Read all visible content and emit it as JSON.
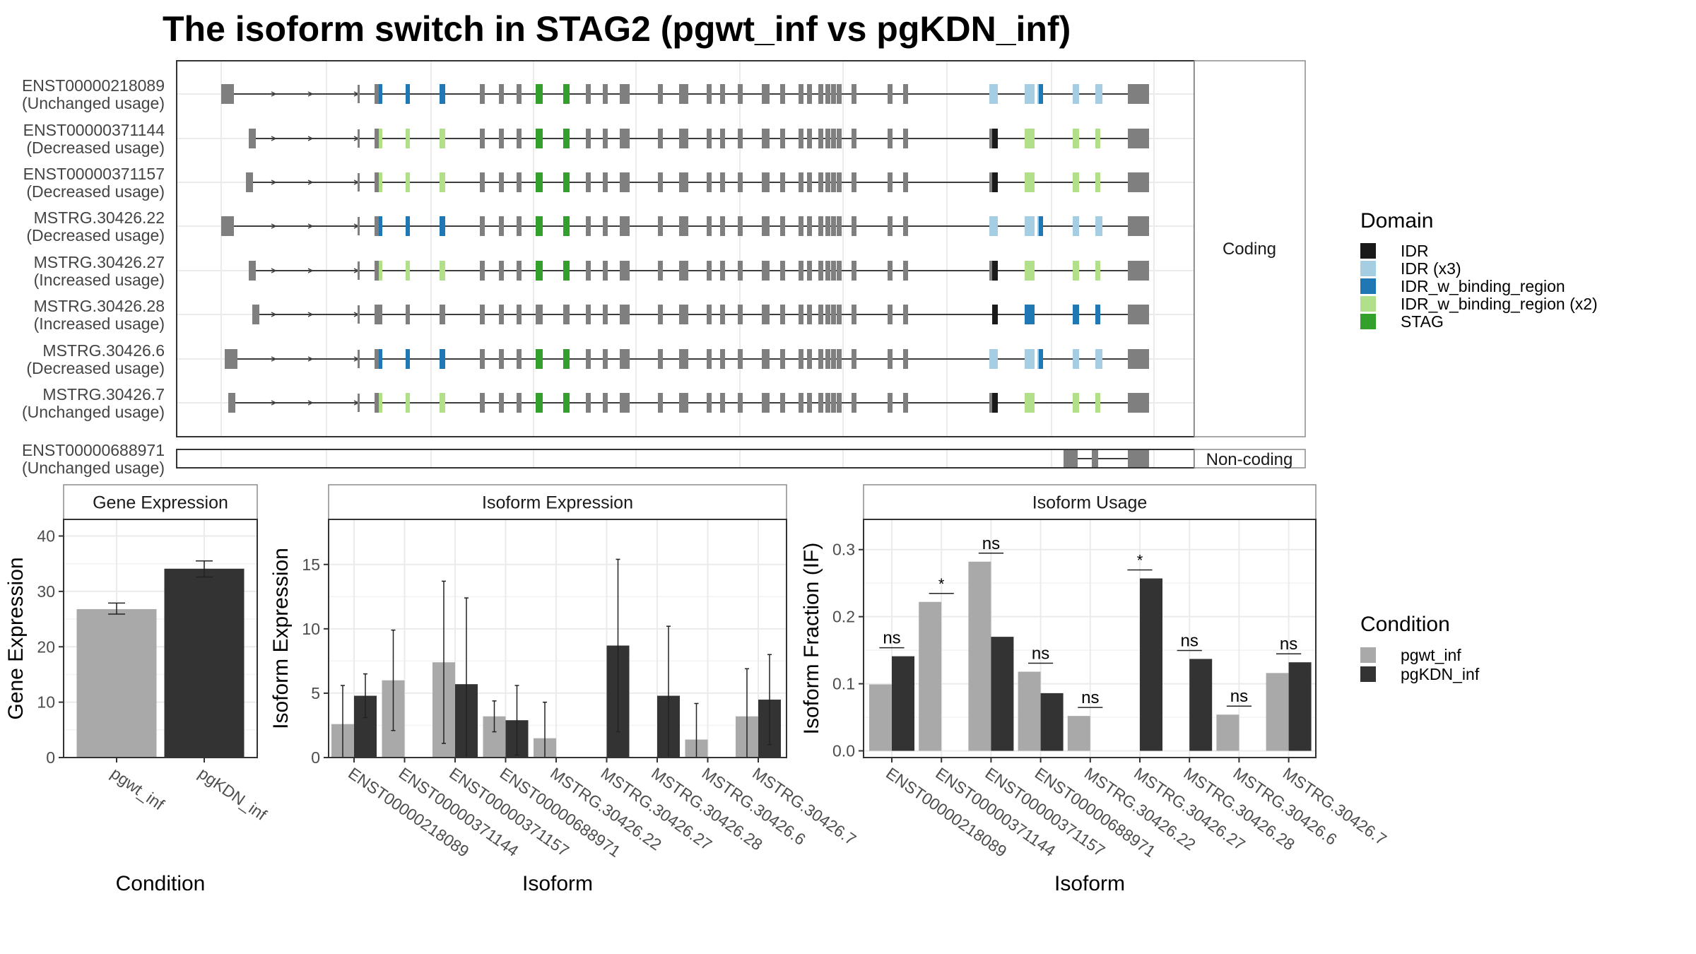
{
  "title": "The isoform switch in STAG2 (pgwt_inf vs pgKDN_inf)",
  "colors": {
    "IDR": "#1a1a1a",
    "IDR_x3": "#a6cee3",
    "IDR_w_binding_region": "#1f78b4",
    "IDR_w_binding_region_x2": "#b2df8a",
    "STAG": "#33a02c",
    "exon_gray": "#7f7f7f",
    "pgwt_inf": "#a9a9a9",
    "pgKDN_inf": "#333333",
    "panel_border": "#333333",
    "grid": "#ebebeb",
    "strip_border": "#8c8c8c"
  },
  "domain_legend": {
    "title": "Domain",
    "items": [
      {
        "label": "IDR",
        "color_key": "IDR"
      },
      {
        "label": "IDR (x3)",
        "color_key": "IDR_x3"
      },
      {
        "label": "IDR_w_binding_region",
        "color_key": "IDR_w_binding_region"
      },
      {
        "label": "IDR_w_binding_region (x2)",
        "color_key": "IDR_w_binding_region_x2"
      },
      {
        "label": "STAG",
        "color_key": "STAG"
      }
    ]
  },
  "condition_legend": {
    "title": "Condition",
    "items": [
      {
        "label": "pgwt_inf",
        "color_key": "pgwt_inf"
      },
      {
        "label": "pgKDN_inf",
        "color_key": "pgKDN_inf"
      }
    ]
  },
  "structure": {
    "coding_label": "Coding",
    "noncoding_label": "Non-coding",
    "coding_isoforms": [
      {
        "id": "ENST00000218089",
        "usage": "(Unchanged usage)",
        "pattern": "A"
      },
      {
        "id": "ENST00000371144",
        "usage": "(Decreased usage)",
        "pattern": "B"
      },
      {
        "id": "ENST00000371157",
        "usage": "(Decreased usage)",
        "pattern": "B"
      },
      {
        "id": "MSTRG.30426.22",
        "usage": "(Decreased usage)",
        "pattern": "A"
      },
      {
        "id": "MSTRG.30426.27",
        "usage": "(Increased usage)",
        "pattern": "B"
      },
      {
        "id": "MSTRG.30426.28",
        "usage": "(Increased usage)",
        "pattern": "C"
      },
      {
        "id": "MSTRG.30426.6",
        "usage": "(Decreased usage)",
        "pattern": "A"
      },
      {
        "id": "MSTRG.30426.7",
        "usage": "(Unchanged usage)",
        "pattern": "B"
      }
    ],
    "noncoding_isoforms": [
      {
        "id": "ENST00000688971",
        "usage": "(Unchanged usage)"
      }
    ]
  },
  "chart_data": [
    {
      "type": "bar",
      "title": "Gene Expression",
      "xlabel": "Condition",
      "ylabel": "Gene Expression",
      "categories": [
        "pgwt_inf",
        "pgKDN_inf"
      ],
      "values": [
        26.8,
        34.1
      ],
      "errors": [
        [
          25.9,
          27.9
        ],
        [
          32.6,
          35.5
        ]
      ],
      "ylim": [
        0,
        43
      ],
      "yticks": [
        0,
        10,
        20,
        30,
        40
      ]
    },
    {
      "type": "bar",
      "title": "Isoform Expression",
      "xlabel": "Isoform",
      "ylabel": "Isoform Expression",
      "categories": [
        "ENST00000218089",
        "ENST00000371144",
        "ENST00000371157",
        "ENST00000688971",
        "MSTRG.30426.22",
        "MSTRG.30426.27",
        "MSTRG.30426.28",
        "MSTRG.30426.6",
        "MSTRG.30426.7"
      ],
      "series": [
        {
          "name": "pgwt_inf",
          "values": [
            2.6,
            6.0,
            7.4,
            3.2,
            1.5,
            0.0,
            0.0,
            1.4,
            3.2
          ],
          "errors": [
            [
              0.0,
              5.6
            ],
            [
              2.1,
              9.9
            ],
            [
              1.1,
              13.7
            ],
            [
              2.0,
              4.4
            ],
            [
              0.0,
              4.3
            ],
            [
              0.0,
              0.0
            ],
            [
              0.0,
              0.0
            ],
            [
              0.0,
              4.2
            ],
            [
              0.0,
              6.9
            ]
          ]
        },
        {
          "name": "pgKDN_inf",
          "values": [
            4.8,
            0.0,
            5.7,
            2.9,
            0.0,
            8.7,
            4.8,
            0.0,
            4.5
          ],
          "errors": [
            [
              3.1,
              6.5
            ],
            [
              0.0,
              0.0
            ],
            [
              0.0,
              12.4
            ],
            [
              0.2,
              5.6
            ],
            [
              0.0,
              0.0
            ],
            [
              2.0,
              15.4
            ],
            [
              0.0,
              10.2
            ],
            [
              0.0,
              0.0
            ],
            [
              1.0,
              8.0
            ]
          ]
        }
      ],
      "ylim": [
        0,
        18.5
      ],
      "yticks": [
        0,
        5,
        10,
        15
      ]
    },
    {
      "type": "bar",
      "title": "Isoform Usage",
      "xlabel": "Isoform",
      "ylabel": "Isoform Fraction (IF)",
      "categories": [
        "ENST00000218089",
        "ENST00000371144",
        "ENST00000371157",
        "ENST00000688971",
        "MSTRG.30426.22",
        "MSTRG.30426.27",
        "MSTRG.30426.28",
        "MSTRG.30426.6",
        "MSTRG.30426.7"
      ],
      "series": [
        {
          "name": "pgwt_inf",
          "values": [
            0.099,
            0.222,
            0.282,
            0.118,
            0.052,
            0.0,
            0.0,
            0.054,
            0.116
          ]
        },
        {
          "name": "pgKDN_inf",
          "values": [
            0.141,
            0.0,
            0.17,
            0.086,
            0.0,
            0.257,
            0.137,
            0.0,
            0.132
          ]
        }
      ],
      "significance": [
        "ns",
        "*",
        "ns",
        "ns",
        "ns",
        "*",
        "ns",
        "ns",
        "ns"
      ],
      "ylim": [
        -0.01,
        0.345
      ],
      "yticks": [
        0.0,
        0.1,
        0.2,
        0.3
      ]
    }
  ]
}
